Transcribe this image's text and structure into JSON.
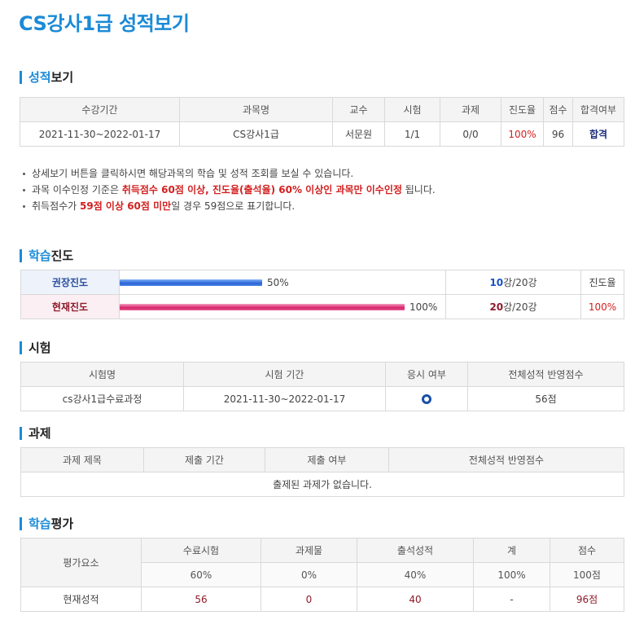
{
  "page_title": "CS강사1급 성적보기",
  "grade_section": {
    "title_hl": "성적",
    "title_rest": "보기",
    "headers": [
      "수강기간",
      "과목명",
      "교수",
      "시험",
      "과제",
      "진도율",
      "점수",
      "합격여부"
    ],
    "row": {
      "period": "2021-11-30~2022-01-17",
      "course": "CS강사1급",
      "professor": "서문원",
      "exam": "1/1",
      "assignment": "0/0",
      "progress": "100%",
      "score": "96",
      "pass": "합격"
    }
  },
  "notes": [
    {
      "parts": [
        {
          "t": "상세보기 버튼을 클릭하시면 해당과목의 학습 및 성적 조회를 보실 수 있습니다.",
          "em": false
        }
      ]
    },
    {
      "parts": [
        {
          "t": "과목 이수인정 기준은 ",
          "em": false
        },
        {
          "t": "취득점수 60점 이상, 진도율(출석율) 60% 이상인 과목만 이수인정",
          "em": true
        },
        {
          "t": " 됩니다.",
          "em": false
        }
      ]
    },
    {
      "parts": [
        {
          "t": "취득점수가 ",
          "em": false
        },
        {
          "t": "59점 이상 60점 미만",
          "em": true
        },
        {
          "t": "일 경우 59점으로 표기합니다.",
          "em": false
        }
      ]
    }
  ],
  "progress_section": {
    "title_hl": "학습",
    "title_rest": "진도",
    "rows": [
      {
        "label": "권장진도",
        "pct_text": "50%",
        "pct": 0.5,
        "lessons_done": "10",
        "lessons_total": "강/20강",
        "rate": "진도율"
      },
      {
        "label": "현재진도",
        "pct_text": "100%",
        "pct": 1.0,
        "lessons_done": "20",
        "lessons_total": "강/20강",
        "rate": "100%"
      }
    ]
  },
  "exam_section": {
    "title": "시험",
    "headers": [
      "시험명",
      "시험 기간",
      "응시 여부",
      "전체성적 반영점수"
    ],
    "row": {
      "name": "cs강사1급수료과정",
      "period": "2021-11-30~2022-01-17",
      "score": "56점"
    }
  },
  "assignment_section": {
    "title": "과제",
    "headers": [
      "과제 제목",
      "제출 기간",
      "제출 여부",
      "전체성적 반영점수"
    ],
    "empty": "출제된 과제가 없습니다."
  },
  "evaluation_section": {
    "title_hl": "학습",
    "title_rest": "평가",
    "corner": "평가요소",
    "headers": [
      "수료시험",
      "과제물",
      "출석성적",
      "계",
      "점수"
    ],
    "weights": [
      "60%",
      "0%",
      "40%",
      "100%",
      "100점"
    ],
    "row_label": "현재성적",
    "values": [
      "56",
      "0",
      "40",
      "-",
      "96점"
    ]
  }
}
